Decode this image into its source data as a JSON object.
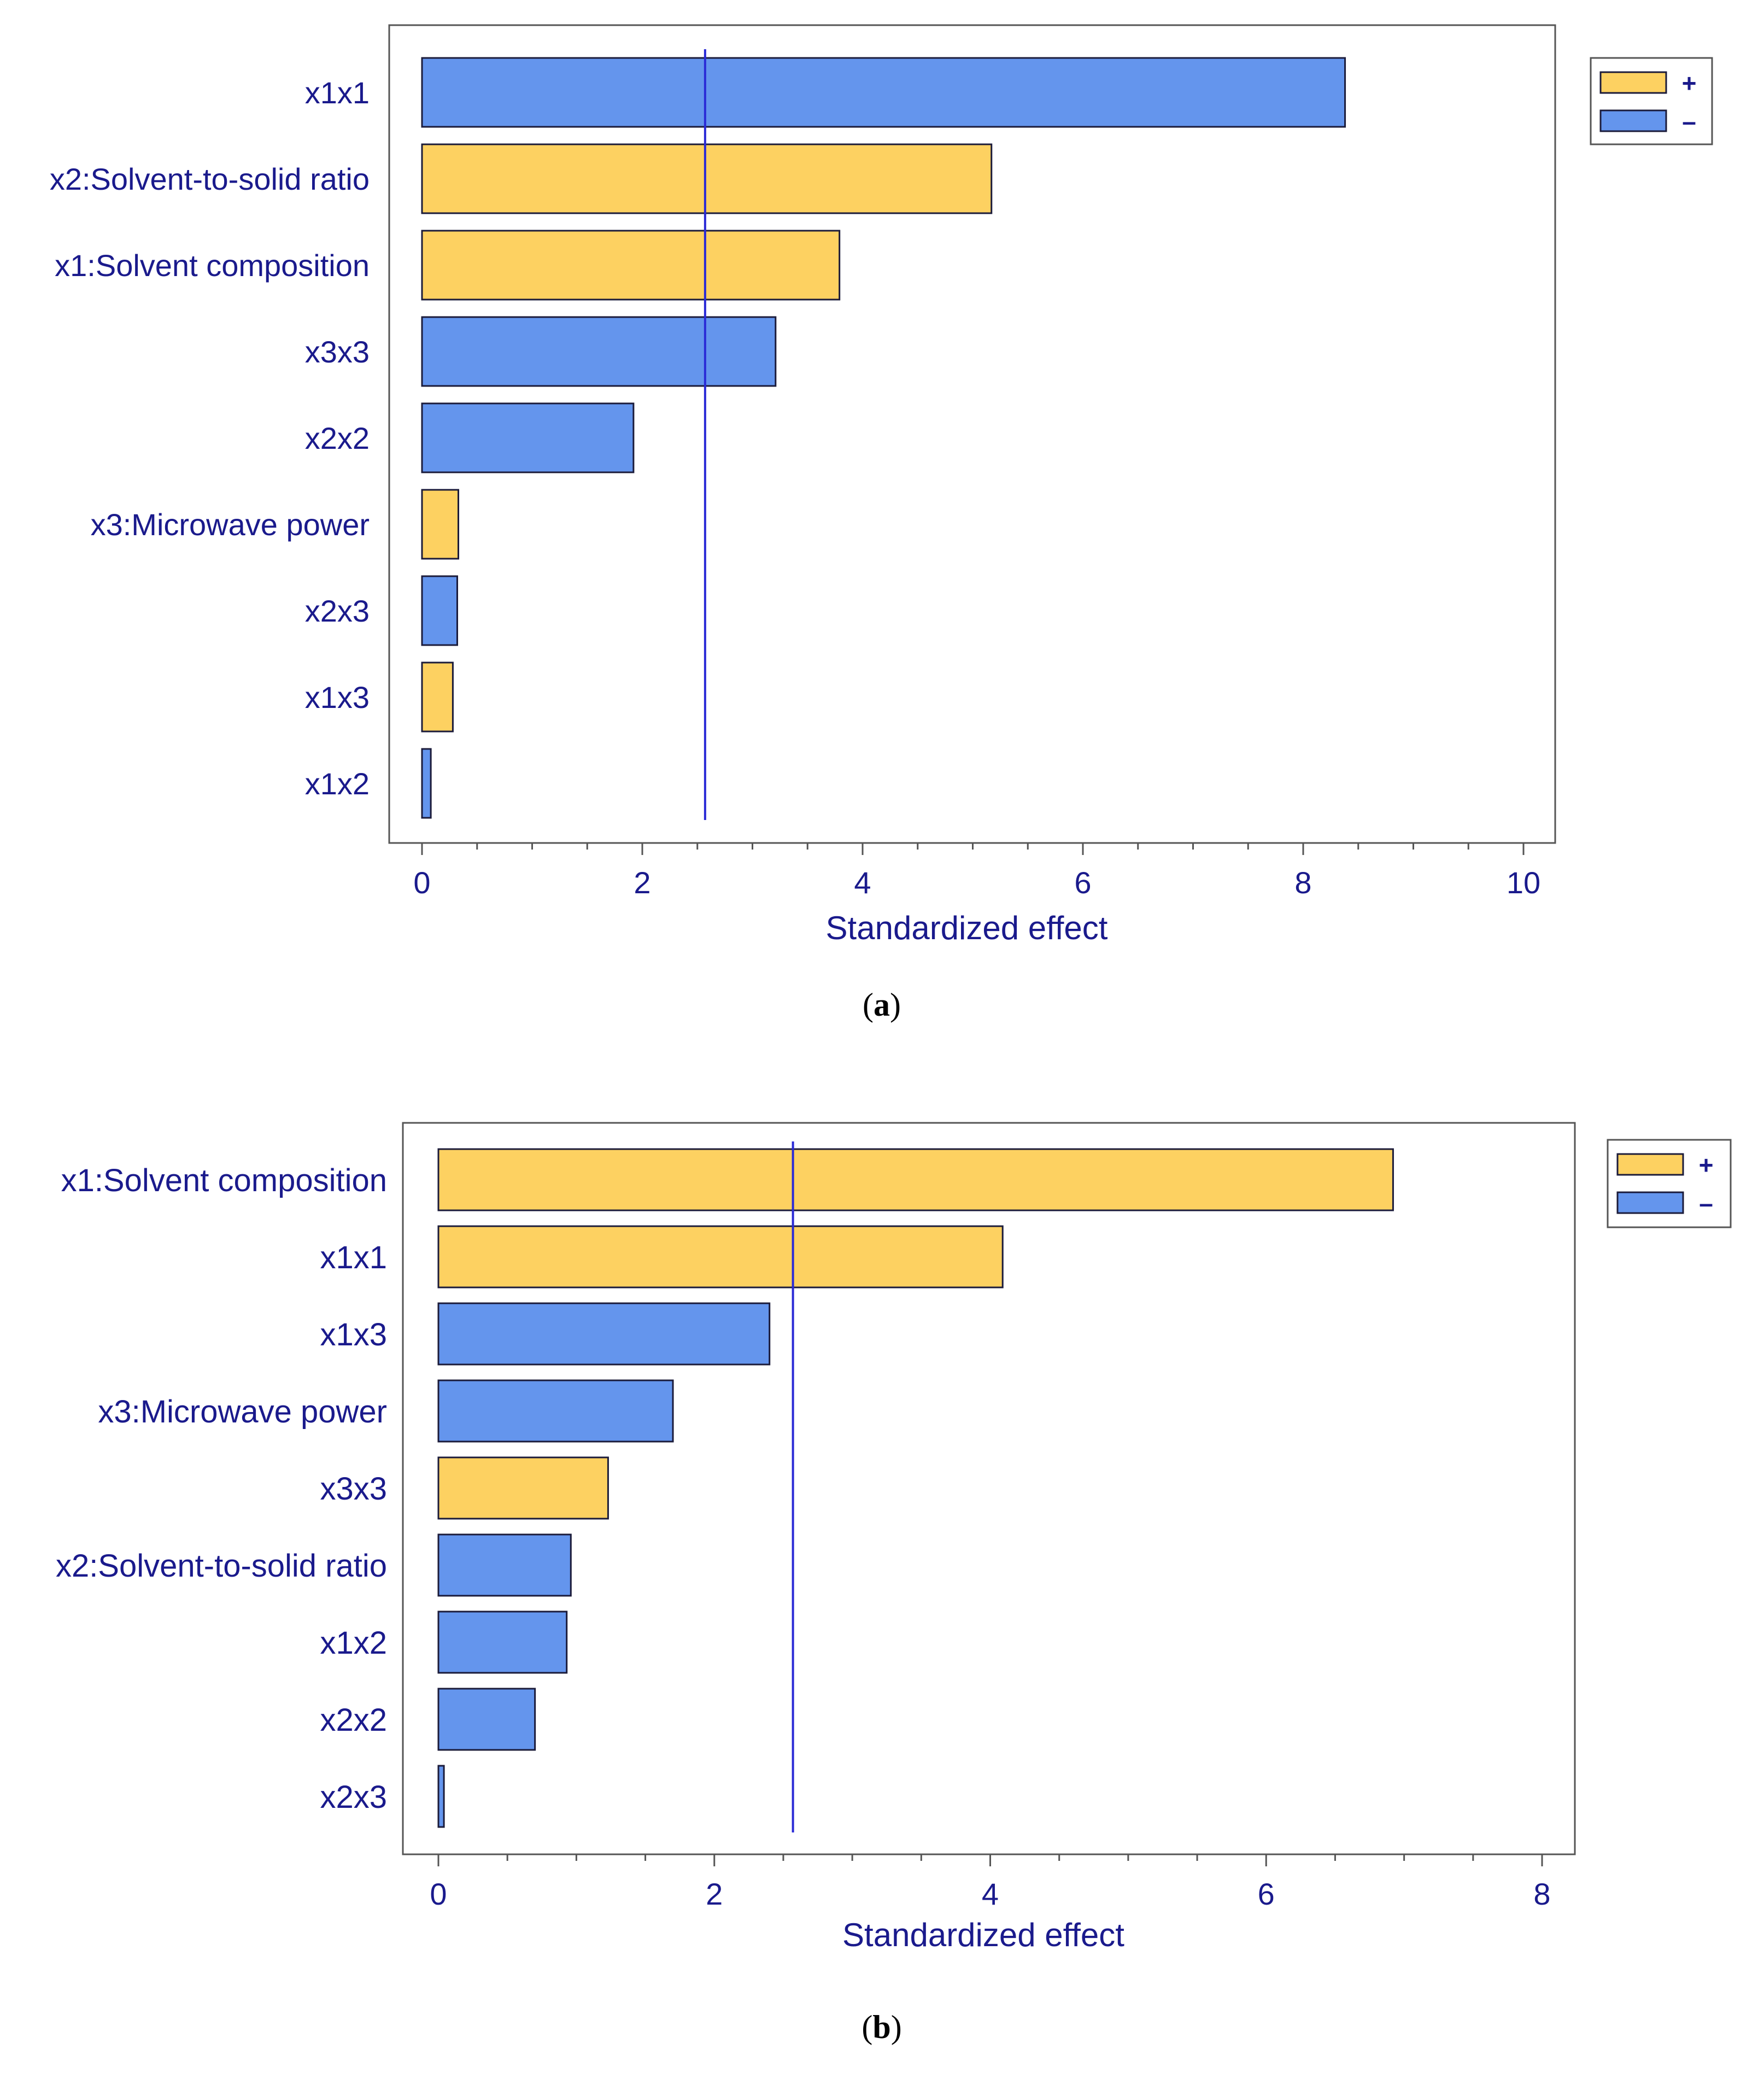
{
  "chart_data": [
    {
      "type": "bar",
      "orientation": "horizontal",
      "panel_label": "a",
      "xlabel": "Standardized effect",
      "xlim": [
        0,
        10
      ],
      "xticks": [
        0,
        2,
        4,
        6,
        8,
        10
      ],
      "reference_line": 2.57,
      "categories": [
        "x1x1",
        "x2:Solvent-to-solid ratio",
        "x1:Solvent composition",
        "x3x3",
        "x2x2",
        "x3:Microwave power",
        "x2x3",
        "x1x3",
        "x1x2"
      ],
      "values": [
        8.38,
        5.17,
        3.79,
        3.21,
        1.92,
        0.33,
        0.32,
        0.28,
        0.08
      ],
      "signs": [
        "-",
        "+",
        "+",
        "-",
        "-",
        "+",
        "-",
        "+",
        "-"
      ],
      "legend": {
        "position": "top-right",
        "entries": [
          {
            "sign": "+",
            "label": "+"
          },
          {
            "sign": "-",
            "label": "–"
          }
        ]
      }
    },
    {
      "type": "bar",
      "orientation": "horizontal",
      "panel_label": "b",
      "xlabel": "Standardized effect",
      "xlim": [
        0,
        8
      ],
      "xticks": [
        0,
        2,
        4,
        6,
        8
      ],
      "reference_line": 2.57,
      "categories": [
        "x1:Solvent composition",
        "x1x1",
        "x1x3",
        "x3:Microwave power",
        "x3x3",
        "x2:Solvent-to-solid ratio",
        "x1x2",
        "x2x2",
        "x2x3"
      ],
      "values": [
        6.92,
        4.09,
        2.4,
        1.7,
        1.23,
        0.96,
        0.93,
        0.7,
        0.04
      ],
      "signs": [
        "+",
        "+",
        "-",
        "-",
        "+",
        "-",
        "-",
        "-",
        "-"
      ],
      "legend": {
        "position": "top-right",
        "entries": [
          {
            "sign": "+",
            "label": "+"
          },
          {
            "sign": "-",
            "label": "–"
          }
        ]
      }
    }
  ],
  "colors": {
    "positive": "#fdd161",
    "negative": "#6495ed",
    "reference_line": "#2a2ad6",
    "text": "#1a1a8c"
  }
}
